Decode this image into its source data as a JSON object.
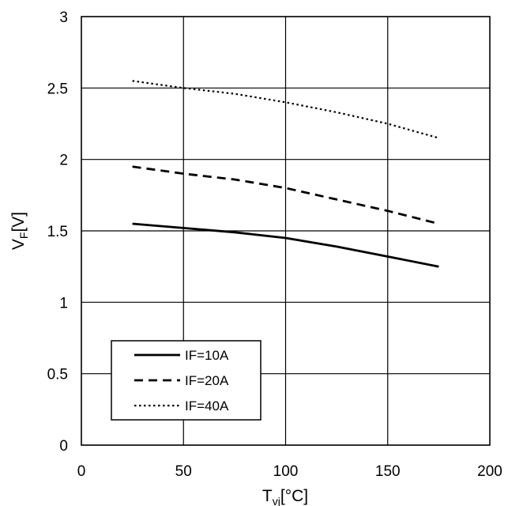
{
  "chart_data": {
    "type": "line",
    "title": "",
    "xlabel_main": "T",
    "xlabel_sub": "vj",
    "xlabel_unit": "[°C]",
    "ylabel_main": "V",
    "ylabel_sub": "F",
    "ylabel_unit": "[V]",
    "xlim": [
      0,
      200
    ],
    "ylim": [
      0,
      3
    ],
    "xticks": [
      0,
      50,
      100,
      150,
      200
    ],
    "yticks": [
      0,
      0.5,
      1,
      1.5,
      2,
      2.5,
      3
    ],
    "xtick_labels": [
      "0",
      "50",
      "100",
      "150",
      "200"
    ],
    "ytick_labels": [
      "0",
      "0.5",
      "1",
      "1.5",
      "2",
      "2.5",
      "3"
    ],
    "grid": true,
    "legend_position": "bottom-left",
    "series": [
      {
        "name": "IF=10A",
        "line_style": "solid",
        "x": [
          25,
          50,
          75,
          100,
          125,
          150,
          175
        ],
        "y": [
          1.55,
          1.52,
          1.49,
          1.45,
          1.39,
          1.32,
          1.25
        ]
      },
      {
        "name": "IF=20A",
        "line_style": "dashed",
        "x": [
          25,
          50,
          75,
          100,
          125,
          150,
          175
        ],
        "y": [
          1.95,
          1.9,
          1.86,
          1.8,
          1.72,
          1.64,
          1.55
        ]
      },
      {
        "name": "IF=40A",
        "line_style": "dotted",
        "x": [
          25,
          50,
          75,
          100,
          125,
          150,
          175
        ],
        "y": [
          2.55,
          2.5,
          2.46,
          2.4,
          2.33,
          2.25,
          2.15
        ]
      }
    ]
  },
  "colors": {
    "line": "#000000",
    "grid": "#000000",
    "background": "#ffffff"
  }
}
